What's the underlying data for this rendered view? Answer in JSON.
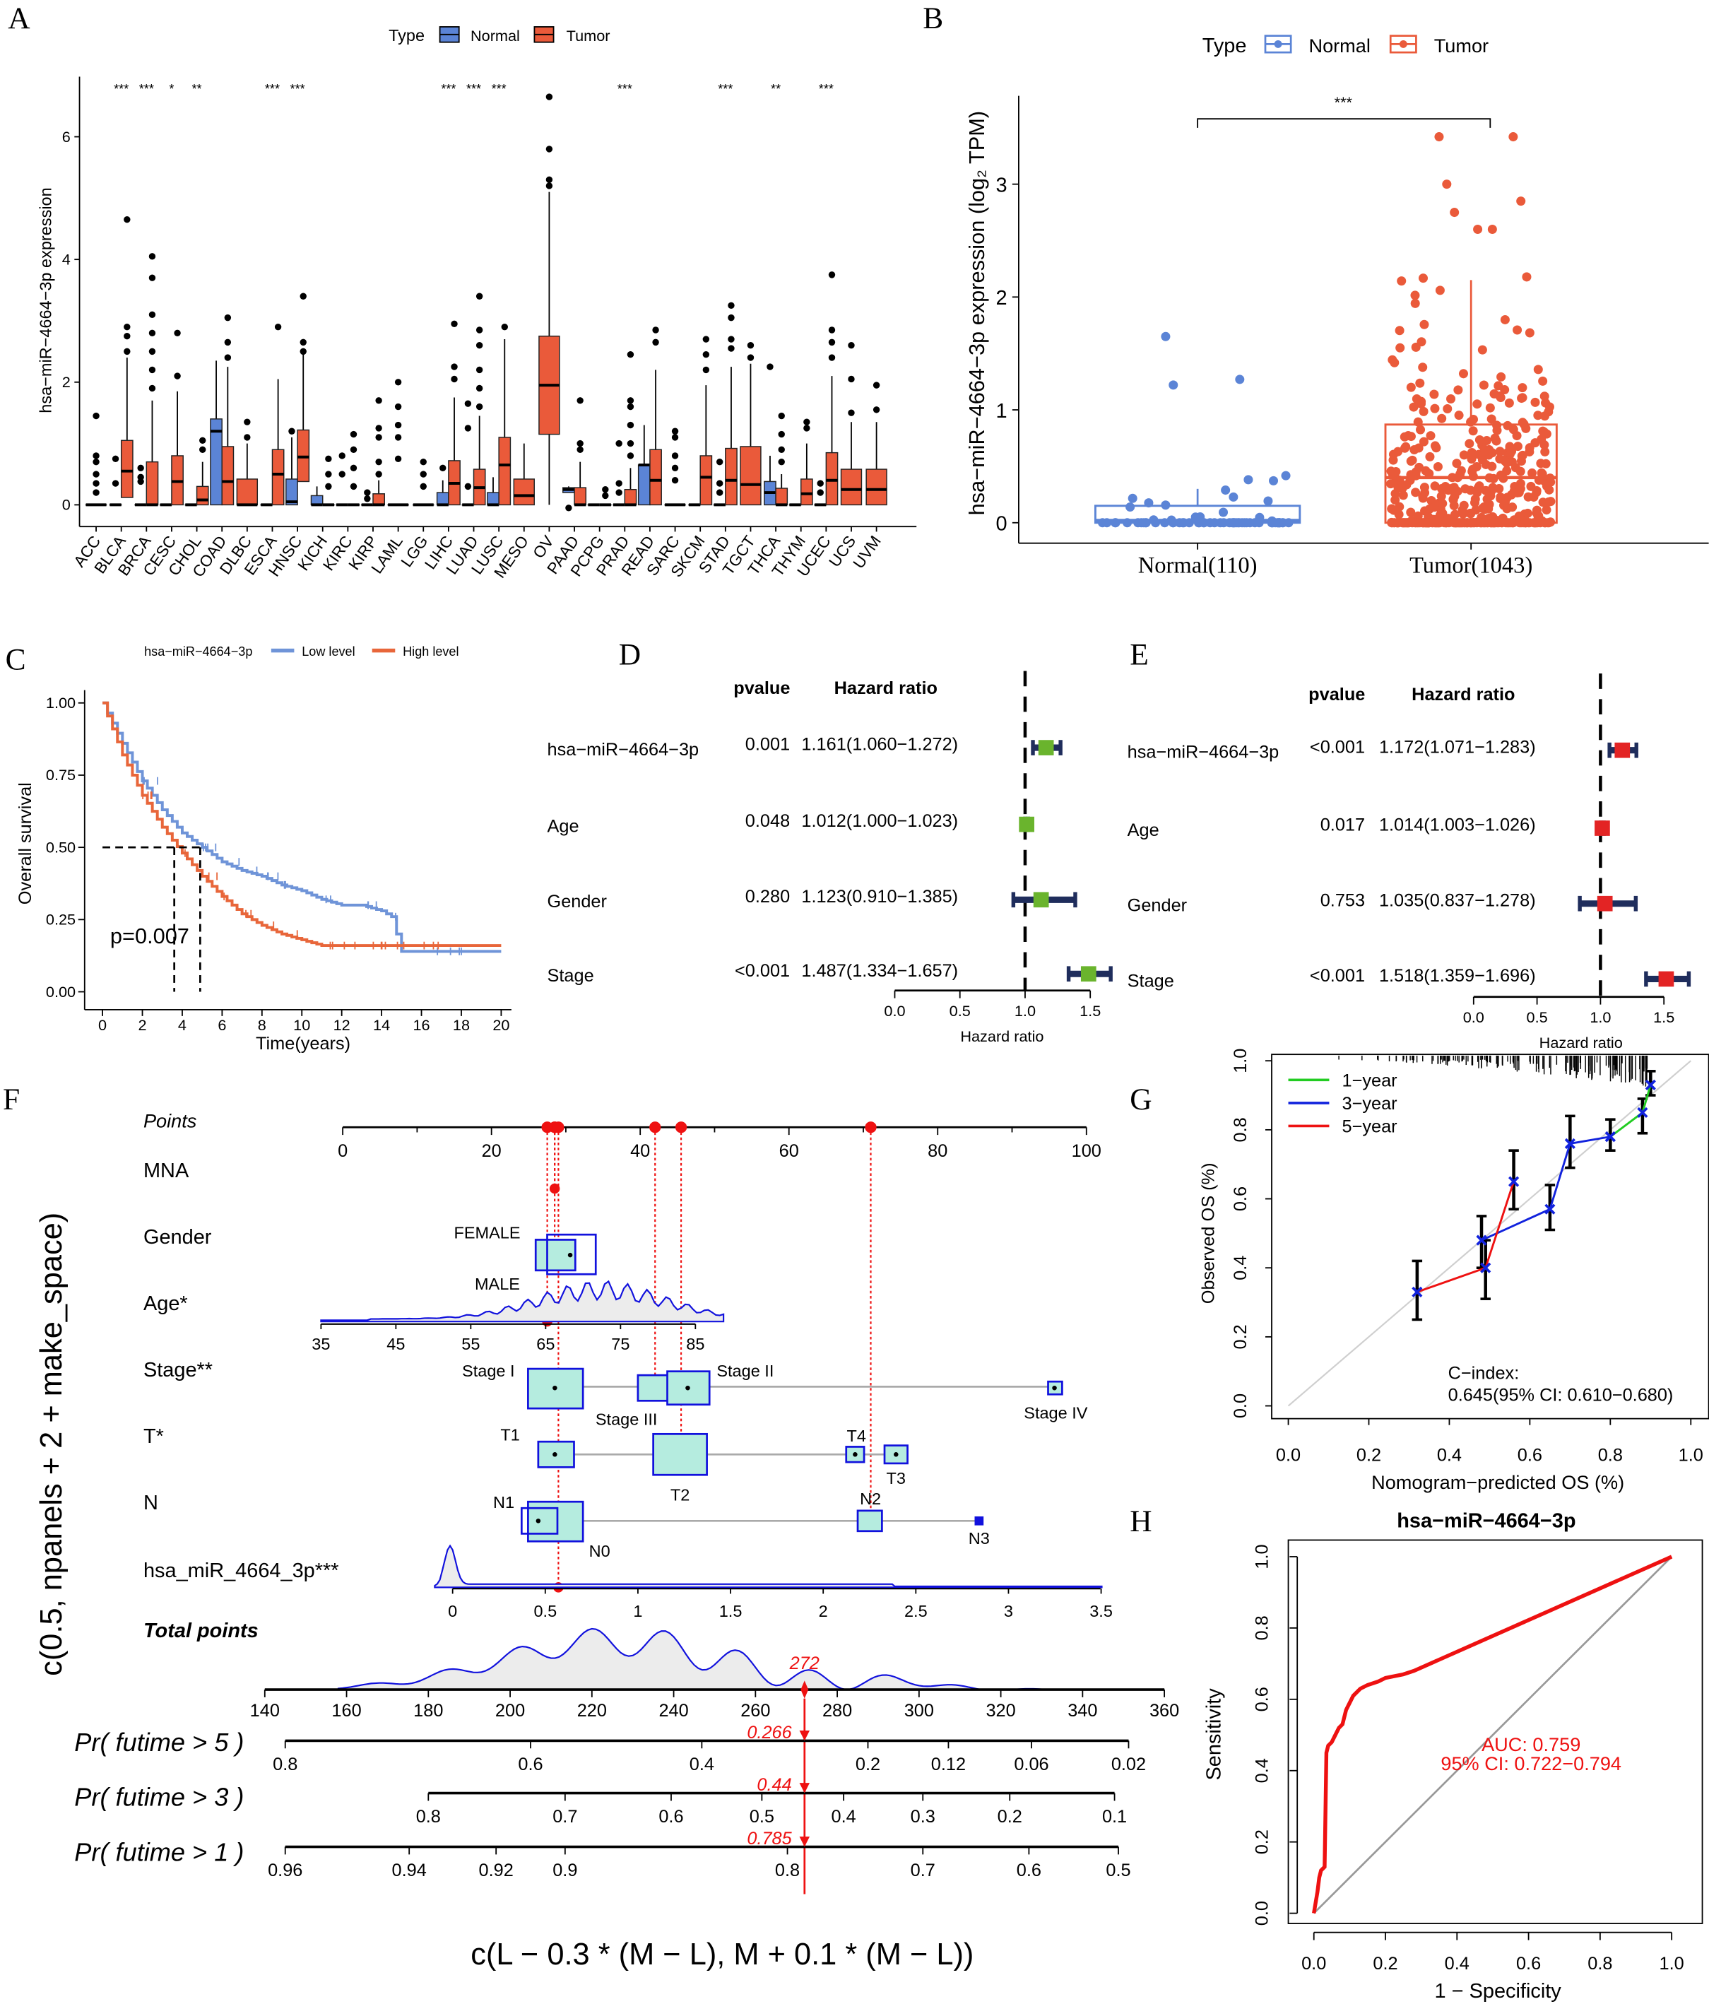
{
  "panel_labels": {
    "A": "A",
    "B": "B",
    "C": "C",
    "D": "D",
    "E": "E",
    "F": "F",
    "G": "G",
    "H": "H"
  },
  "colors": {
    "normal": "#5b84d6",
    "tumor": "#ea5a3a",
    "low": "#6f94d8",
    "high": "#e8663a",
    "green": "#6ab42d",
    "forest_red": "#e32424",
    "navy": "#1f2d5c",
    "nomo_red": "#ee1111",
    "nomo_blue": "#1111dd",
    "teal": "#b5ecdf"
  },
  "chart_data": [
    {
      "panel": "A",
      "type": "box",
      "ylabel": "hsa−miR−4664−3p expression",
      "legend": {
        "title": "Type",
        "items": [
          "Normal",
          "Tumor"
        ]
      },
      "yticks": [
        0,
        2,
        4,
        6
      ],
      "ylim": [
        -0.3,
        6.9
      ],
      "categories": [
        "ACC",
        "BLCA",
        "BRCA",
        "CESC",
        "CHOL",
        "COAD",
        "DLBC",
        "ESCA",
        "HNSC",
        "KICH",
        "KIRC",
        "KIRP",
        "LAML",
        "LGG",
        "LIHC",
        "LUAD",
        "LUSC",
        "MESO",
        "OV",
        "PAAD",
        "PCPG",
        "PRAD",
        "READ",
        "SARC",
        "SKCM",
        "STAD",
        "TGCT",
        "THCA",
        "THYM",
        "UCEC",
        "UCS",
        "UVM"
      ],
      "significance": [
        "",
        "***",
        "***",
        "*",
        "**",
        "",
        "",
        "***",
        "***",
        "",
        "",
        "",
        "",
        "",
        "***",
        "***",
        "***",
        "",
        "",
        "",
        "",
        "***",
        "",
        "",
        "",
        "***",
        "",
        "**",
        "",
        "***",
        "",
        ""
      ],
      "normal": [
        null,
        [
          0,
          0,
          0,
          0,
          [
            0.75,
            0.35
          ]
        ],
        [
          0,
          0,
          0,
          0,
          [
            0.6,
            0.45,
            0.38
          ]
        ],
        [
          0,
          0,
          0,
          0,
          []
        ],
        [
          0,
          0,
          0,
          0,
          []
        ],
        [
          0,
          1.2,
          1.4,
          2.35,
          []
        ],
        null,
        [
          0,
          0,
          0,
          0,
          []
        ],
        [
          0,
          0.05,
          0.42,
          1.1,
          [
            1.2
          ]
        ],
        [
          0,
          0,
          0.15,
          0.3,
          []
        ],
        [
          0,
          0,
          0,
          0,
          [
            0.8,
            0.5
          ]
        ],
        [
          0,
          0,
          0,
          0,
          [
            0.2,
            0.1
          ]
        ],
        null,
        null,
        [
          0,
          0,
          0.2,
          0.4,
          [
            0.6
          ]
        ],
        [
          0,
          0,
          0,
          0,
          [
            1.65,
            1.25,
            0.3
          ]
        ],
        [
          0,
          0,
          0.2,
          0.45,
          []
        ],
        null,
        null,
        [
          0.2,
          0.25,
          0.28,
          0.3,
          [
            -0.05
          ]
        ],
        [
          0,
          0,
          0,
          0,
          []
        ],
        [
          0,
          0,
          0,
          0,
          [
            1.0,
            0.35,
            0.2
          ]
        ],
        [
          0,
          0.65,
          0.65,
          1.3,
          []
        ],
        null,
        [
          0,
          0,
          0,
          0,
          []
        ],
        [
          0,
          0,
          0,
          0,
          [
            0.7,
            0.35,
            0.2
          ]
        ],
        null,
        [
          0,
          0.2,
          0.38,
          0.8,
          [
            2.25
          ]
        ],
        [
          0,
          0,
          0,
          0,
          []
        ],
        [
          0,
          0,
          0,
          0,
          [
            0.35,
            0.2
          ]
        ],
        null,
        null
      ],
      "tumor": [
        [
          0,
          0,
          0,
          0,
          [
            1.45,
            0.8,
            0.7,
            0.5,
            0.35,
            0.2
          ]
        ],
        [
          0.12,
          0.55,
          1.05,
          2.4,
          [
            4.65,
            2.9,
            2.75,
            2.5
          ]
        ],
        [
          0,
          0,
          0.7,
          1.7,
          [
            4.05,
            3.7,
            3.1,
            2.8,
            2.5,
            2.2,
            1.9
          ]
        ],
        [
          0,
          0.38,
          0.8,
          1.85,
          [
            2.8,
            2.1
          ]
        ],
        [
          0,
          0.08,
          0.3,
          0.7,
          [
            1.05,
            0.9
          ]
        ],
        [
          0,
          0.38,
          0.95,
          2.25,
          [
            3.05,
            2.65,
            2.4
          ]
        ],
        [
          0,
          0,
          0.42,
          1.0,
          [
            1.35,
            1.1
          ]
        ],
        [
          0,
          0.5,
          0.9,
          2.05,
          [
            2.9
          ]
        ],
        [
          0.38,
          0.78,
          1.22,
          2.45,
          [
            3.4,
            2.65,
            2.5
          ]
        ],
        [
          0,
          0,
          0,
          0,
          [
            0.75,
            0.5,
            0.3
          ]
        ],
        [
          0,
          0,
          0,
          0,
          [
            1.15,
            0.9,
            0.6,
            0.3
          ]
        ],
        [
          0,
          0,
          0.18,
          0.4,
          [
            1.7,
            1.25,
            1.1,
            0.7,
            0.5
          ]
        ],
        [
          0,
          0,
          0,
          0,
          [
            2.0,
            1.6,
            1.3,
            1.1,
            0.75
          ]
        ],
        [
          0,
          0,
          0,
          0,
          [
            0.7,
            0.5,
            0.3
          ]
        ],
        [
          0,
          0.35,
          0.72,
          1.75,
          [
            2.95,
            2.25,
            2.05
          ]
        ],
        [
          0,
          0.28,
          0.58,
          1.45,
          [
            3.4,
            2.85,
            2.6,
            2.2,
            1.9,
            1.6
          ]
        ],
        [
          0,
          0.65,
          1.1,
          2.7,
          [
            2.9
          ]
        ],
        [
          0,
          0.15,
          0.42,
          1.0,
          []
        ],
        [
          1.15,
          1.95,
          2.75,
          5.1,
          [
            6.65,
            5.8,
            5.3,
            5.2
          ]
        ],
        [
          0,
          0,
          0.28,
          0.7,
          [
            1.7,
            1.0,
            0.9
          ]
        ],
        [
          0,
          0,
          0,
          0,
          [
            0.25,
            0.15
          ]
        ],
        [
          0,
          0,
          0.25,
          0.6,
          [
            2.45,
            1.7,
            1.6,
            1.3,
            1.0,
            0.8
          ]
        ],
        [
          0,
          0.4,
          0.9,
          2.2,
          [
            2.85,
            2.65
          ]
        ],
        [
          0,
          0,
          0,
          0,
          [
            1.2,
            1.1,
            0.8,
            0.6,
            0.4
          ]
        ],
        [
          0,
          0.45,
          0.8,
          1.95,
          [
            2.7,
            2.45,
            2.2
          ]
        ],
        [
          0,
          0.4,
          0.92,
          2.25,
          [
            3.25,
            3.05,
            2.7,
            2.55
          ]
        ],
        [
          0,
          0.33,
          0.95,
          2.3,
          [
            2.6,
            2.4
          ]
        ],
        [
          0,
          0,
          0.27,
          0.5,
          [
            1.45,
            1.15,
            0.9,
            0.7
          ]
        ],
        [
          0,
          0.18,
          0.42,
          1.0,
          [
            1.35,
            1.25
          ]
        ],
        [
          0,
          0.4,
          0.85,
          2.1,
          [
            3.75,
            2.85,
            2.65,
            2.4
          ]
        ],
        [
          0,
          0.25,
          0.58,
          1.35,
          [
            2.6,
            2.05,
            1.5
          ]
        ],
        [
          0,
          0.25,
          0.58,
          1.35,
          [
            1.95,
            1.55
          ]
        ]
      ],
      "box_format": "[q1, median, q3, upper_whisker, outliers]"
    },
    {
      "panel": "B",
      "type": "box",
      "ylabel": "hsa−miR−4664−3p expression (log₂ TPM)",
      "legend": {
        "title": "Type",
        "items": [
          "Normal",
          "Tumor"
        ]
      },
      "yticks": [
        0,
        1,
        2,
        3
      ],
      "categories": [
        "Normal(110)",
        "Tumor(1043)"
      ],
      "n": [
        110,
        1043
      ],
      "boxes": [
        [
          0,
          0.02,
          0.15,
          0.3
        ],
        [
          0,
          0.4,
          0.87,
          2.15
        ]
      ],
      "high_points": [
        [
          1.65,
          1.27,
          1.22
        ],
        [
          3.42,
          3.42,
          3.0,
          2.85,
          2.75
        ]
      ],
      "significance": "***"
    },
    {
      "panel": "C",
      "type": "line",
      "legend": {
        "title": "hsa−miR−4664−3p",
        "items": [
          "Low level",
          "High level"
        ]
      },
      "xlabel": "Time(years)",
      "ylabel": "Overall survival",
      "xticks": [
        0,
        2,
        4,
        6,
        8,
        10,
        12,
        14,
        16,
        18,
        20
      ],
      "yticks": [
        "0.00",
        "0.25",
        "0.50",
        "0.75",
        "1.00"
      ],
      "pvalue": "p=0.007",
      "series": [
        {
          "name": "Low level",
          "x": [
            0,
            1,
            2,
            3,
            4,
            5,
            6,
            7,
            8,
            9,
            10,
            11,
            12,
            13,
            14,
            14.5,
            15,
            20
          ],
          "y": [
            1,
            0.86,
            0.73,
            0.63,
            0.55,
            0.5,
            0.45,
            0.42,
            0.4,
            0.37,
            0.35,
            0.32,
            0.3,
            0.3,
            0.28,
            0.26,
            0.14,
            0.14
          ]
        },
        {
          "name": "High level",
          "x": [
            0,
            1,
            2,
            3,
            4,
            5,
            6,
            7,
            8,
            9,
            10,
            11,
            12,
            20
          ],
          "y": [
            1,
            0.82,
            0.68,
            0.57,
            0.48,
            0.4,
            0.33,
            0.27,
            0.23,
            0.2,
            0.18,
            0.16,
            0.16,
            0.16
          ]
        }
      ],
      "median_survival": [
        4.9,
        3.6
      ]
    },
    {
      "panel": "D",
      "type": "forest",
      "headers": [
        "pvalue",
        "Hazard ratio"
      ],
      "xlabel": "Hazard ratio",
      "xticks": [
        "0.0",
        "0.5",
        "1.0",
        "1.5"
      ],
      "rows": [
        {
          "label": "hsa−miR−4664−3p",
          "p": "0.001",
          "hr_text": "1.161(1.060−1.272)",
          "hr": 1.161,
          "lo": 1.06,
          "hi": 1.272
        },
        {
          "label": "Age",
          "p": "0.048",
          "hr_text": "1.012(1.000−1.023)",
          "hr": 1.012,
          "lo": 1.0,
          "hi": 1.023
        },
        {
          "label": "Gender",
          "p": "0.280",
          "hr_text": "1.123(0.910−1.385)",
          "hr": 1.123,
          "lo": 0.91,
          "hi": 1.385
        },
        {
          "label": "Stage",
          "p": "<0.001",
          "hr_text": "1.487(1.334−1.657)",
          "hr": 1.487,
          "lo": 1.334,
          "hi": 1.657
        }
      ]
    },
    {
      "panel": "E",
      "type": "forest",
      "headers": [
        "pvalue",
        "Hazard ratio"
      ],
      "xlabel": "Hazard ratio",
      "xticks": [
        "0.0",
        "0.5",
        "1.0",
        "1.5"
      ],
      "rows": [
        {
          "label": "hsa−miR−4664−3p",
          "p": "<0.001",
          "hr_text": "1.172(1.071−1.283)",
          "hr": 1.172,
          "lo": 1.071,
          "hi": 1.283
        },
        {
          "label": "Age",
          "p": "0.017",
          "hr_text": "1.014(1.003−1.026)",
          "hr": 1.014,
          "lo": 1.003,
          "hi": 1.026
        },
        {
          "label": "Gender",
          "p": "0.753",
          "hr_text": "1.035(0.837−1.278)",
          "hr": 1.035,
          "lo": 0.837,
          "hi": 1.278
        },
        {
          "label": "Stage",
          "p": "<0.001",
          "hr_text": "1.518(1.359−1.696)",
          "hr": 1.518,
          "lo": 1.359,
          "hi": 1.696
        }
      ]
    },
    {
      "panel": "F",
      "type": "nomogram",
      "side_label": "c(0.5, npanels + 2 + make_space)",
      "bottom_label": "c(L − 0.3 * (M − L), M + 0.1 * (M − L))",
      "rows": [
        "Points",
        "MNA",
        "Gender",
        "Age*",
        "Stage**",
        "T*",
        "N",
        "hsa_miR_4664_3p***",
        "Total points"
      ],
      "points_ticks": [
        "0",
        "20",
        "40",
        "60",
        "80",
        "100"
      ],
      "gender_levels": [
        "FEMALE",
        "MALE"
      ],
      "age_ticks": [
        "35",
        "45",
        "55",
        "65",
        "75",
        "85"
      ],
      "stage_levels": [
        "Stage I",
        "Stage II",
        "Stage III",
        "Stage IV"
      ],
      "t_levels": [
        "T1",
        "T2",
        "T3",
        "T4"
      ],
      "n_levels": [
        "N0",
        "N1",
        "N2",
        "N3"
      ],
      "mirna_ticks": [
        "0",
        "0.5",
        "1",
        "1.5",
        "2",
        "2.5",
        "3",
        "3.5"
      ],
      "total_ticks": [
        "140",
        "160",
        "180",
        "200",
        "220",
        "240",
        "260",
        "280",
        "300",
        "320",
        "340",
        "360"
      ],
      "selected_points": [
        28.5,
        28.5,
        27.5,
        42,
        45.5,
        71,
        29
      ],
      "total_points": "272",
      "probabilities": [
        {
          "label": "Pr( futime > 5 )",
          "value": "0.266",
          "ticks": [
            "0.8",
            "0.6",
            "0.4",
            "0.2",
            "0.12",
            "0.06",
            "0.02"
          ]
        },
        {
          "label": "Pr( futime > 3 )",
          "value": "0.44",
          "ticks": [
            "0.8",
            "0.7",
            "0.6",
            "0.5",
            "0.4",
            "0.3",
            "0.2",
            "0.1"
          ]
        },
        {
          "label": "Pr( futime > 1 )",
          "value": "0.785",
          "ticks": [
            "0.96",
            "0.94",
            "0.92",
            "0.9",
            "0.8",
            "0.7",
            "0.6",
            "0.5"
          ]
        }
      ]
    },
    {
      "panel": "G",
      "type": "line",
      "xlabel": "Nomogram−predicted OS (%)",
      "ylabel": "Observed OS (%)",
      "xticks": [
        "0.0",
        "0.2",
        "0.4",
        "0.6",
        "0.8",
        "1.0"
      ],
      "yticks": [
        "0.0",
        "0.2",
        "0.4",
        "0.6",
        "0.8",
        "1.0"
      ],
      "series": [
        {
          "name": "1−year",
          "color": "#22cc22",
          "x": [
            0.8,
            0.88,
            0.9
          ],
          "y": [
            0.78,
            0.85,
            0.93
          ]
        },
        {
          "name": "3−year",
          "color": "#1122dd",
          "x": [
            0.48,
            0.65,
            0.7,
            0.8
          ],
          "y": [
            0.48,
            0.57,
            0.76,
            0.78
          ]
        },
        {
          "name": "5−year",
          "color": "#ee1111",
          "x": [
            0.32,
            0.49,
            0.56
          ],
          "y": [
            0.33,
            0.4,
            0.65
          ]
        }
      ],
      "errors": [
        [
          0.32,
          0.25,
          0.42
        ],
        [
          0.49,
          0.31,
          0.48
        ],
        [
          0.56,
          0.57,
          0.74
        ],
        [
          0.48,
          0.4,
          0.55
        ],
        [
          0.65,
          0.51,
          0.64
        ],
        [
          0.7,
          0.69,
          0.84
        ],
        [
          0.8,
          0.74,
          0.83
        ],
        [
          0.88,
          0.79,
          0.89
        ],
        [
          0.9,
          0.9,
          0.97
        ]
      ],
      "cindex_label": "C−index:",
      "cindex": "0.645(95% CI: 0.610−0.680)"
    },
    {
      "panel": "H",
      "type": "line",
      "title": "hsa−miR−4664−3p",
      "xlabel": "1 − Specificity",
      "ylabel": "Sensitivity",
      "xticks": [
        "0.0",
        "0.2",
        "0.4",
        "0.6",
        "0.8",
        "1.0"
      ],
      "yticks": [
        "0.0",
        "0.2",
        "0.4",
        "0.6",
        "0.8",
        "1.0"
      ],
      "auc": "AUC: 0.759",
      "ci": "95% CI: 0.722−0.794",
      "x": [
        0,
        0.005,
        0.01,
        0.015,
        0.02,
        0.03,
        0.035,
        0.04,
        0.05,
        0.06,
        0.07,
        0.08,
        0.09,
        0.1,
        0.11,
        0.13,
        0.15,
        0.18,
        0.2,
        0.25,
        0.28,
        1
      ],
      "y": [
        0,
        0.03,
        0.06,
        0.1,
        0.12,
        0.13,
        0.45,
        0.47,
        0.48,
        0.5,
        0.52,
        0.53,
        0.57,
        0.59,
        0.61,
        0.63,
        0.64,
        0.65,
        0.66,
        0.67,
        0.68,
        1
      ]
    }
  ]
}
